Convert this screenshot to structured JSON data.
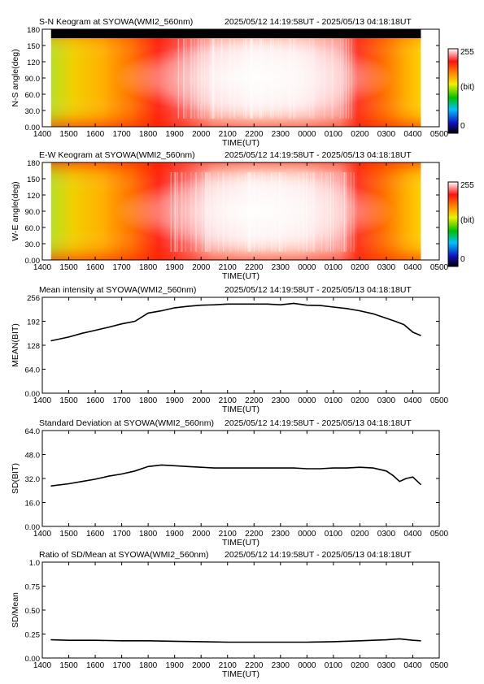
{
  "colors": {
    "line": "#000000",
    "frame": "#000000",
    "background": "#ffffff"
  },
  "x_ticks": [
    "1400",
    "1500",
    "1600",
    "1700",
    "1800",
    "1900",
    "2000",
    "2100",
    "2200",
    "2300",
    "0000",
    "0100",
    "0200",
    "0300",
    "0400",
    "0500"
  ],
  "chart_data": [
    {
      "type": "heatmap",
      "title": "S-N Keogram at SYOWA(WMI2_560nm)",
      "subtitle": "2025/05/12 14:19:58UT - 2025/05/13 04:18:18UT",
      "xlabel": "TIME(UT)",
      "ylabel": "N-S angle(deg)",
      "xlim": [
        "1400",
        "0500"
      ],
      "ylim": [
        0,
        180
      ],
      "y_ticks": [
        "0.00",
        "30.0",
        "60.0",
        "90.0",
        "120",
        "150",
        "180"
      ],
      "colorbar": {
        "ticks": [
          "0",
          "(bit)",
          "255"
        ],
        "range": [
          0,
          255
        ]
      },
      "data_extent": [
        "14:19:58",
        "04:18:18"
      ]
    },
    {
      "type": "heatmap",
      "title": "E-W Keogram at SYOWA(WMI2_560nm)",
      "subtitle": "2025/05/12 14:19:58UT - 2025/05/13 04:18:18UT",
      "xlabel": "TIME(UT)",
      "ylabel": "W-E angle(deg)",
      "xlim": [
        "1400",
        "0500"
      ],
      "ylim": [
        0,
        180
      ],
      "y_ticks": [
        "0.00",
        "30.0",
        "60.0",
        "90.0",
        "120",
        "150",
        "180"
      ],
      "colorbar": {
        "ticks": [
          "0",
          "(bit)",
          "255"
        ],
        "range": [
          0,
          255
        ]
      },
      "data_extent": [
        "14:19:58",
        "04:18:18"
      ]
    },
    {
      "type": "line",
      "title": "Mean intensity at SYOWA(WMI2_560nm)",
      "subtitle": "2025/05/12 14:19:58UT - 2025/05/13 04:18:18UT",
      "xlabel": "TIME(UT)",
      "ylabel": "MEAN(BIT)",
      "xlim": [
        "1400",
        "0500"
      ],
      "ylim": [
        0,
        256
      ],
      "y_ticks": [
        "0.00",
        "64.0",
        "128",
        "192",
        "256"
      ],
      "series": [
        {
          "x": [
            "14:20",
            "15:00",
            "15:30",
            "16:00",
            "16:30",
            "17:00",
            "17:30",
            "18:00",
            "18:30",
            "19:00",
            "19:30",
            "20:00",
            "20:30",
            "21:00",
            "21:30",
            "22:00",
            "22:30",
            "23:00",
            "23:30",
            "00:00",
            "00:30",
            "01:00",
            "01:30",
            "02:00",
            "02:30",
            "03:00",
            "03:20",
            "03:40",
            "04:00",
            "04:18"
          ],
          "values": [
            140,
            150,
            160,
            168,
            176,
            185,
            192,
            214,
            220,
            228,
            232,
            235,
            236,
            238,
            238,
            238,
            238,
            236,
            240,
            235,
            234,
            230,
            226,
            220,
            212,
            200,
            192,
            183,
            163,
            154
          ]
        }
      ]
    },
    {
      "type": "line",
      "title": "Standard Deviation at SYOWA(WMI2_560nm)",
      "subtitle": "2025/05/12 14:19:58UT - 2025/05/13 04:18:18UT",
      "xlabel": "TIME(UT)",
      "ylabel": "SD(BIT)",
      "xlim": [
        "1400",
        "0500"
      ],
      "ylim": [
        0,
        64
      ],
      "y_ticks": [
        "0.00",
        "16.0",
        "32.0",
        "48.0",
        "64.0"
      ],
      "series": [
        {
          "x": [
            "14:20",
            "15:00",
            "15:30",
            "16:00",
            "16:30",
            "17:00",
            "17:30",
            "18:00",
            "18:30",
            "19:00",
            "19:30",
            "20:00",
            "20:30",
            "21:00",
            "21:30",
            "22:00",
            "22:30",
            "23:00",
            "23:30",
            "00:00",
            "00:30",
            "01:00",
            "01:30",
            "02:00",
            "02:30",
            "03:00",
            "03:15",
            "03:30",
            "03:45",
            "04:00",
            "04:18"
          ],
          "values": [
            27,
            28.5,
            30,
            31.5,
            33.5,
            35,
            37,
            40,
            41,
            40.5,
            40,
            39.5,
            39,
            39,
            39,
            39,
            39,
            39,
            39,
            38.5,
            38.5,
            39,
            39,
            39.5,
            39,
            37,
            34,
            30,
            32,
            33,
            28
          ]
        }
      ]
    },
    {
      "type": "line",
      "title": "Ratio of SD/Mean at SYOWA(WMI2_560nm)",
      "subtitle": "2025/05/12 14:19:58UT - 2025/05/13 04:18:18UT",
      "xlabel": "TIME(UT)",
      "ylabel": "SD/Mean",
      "xlim": [
        "1400",
        "0500"
      ],
      "ylim": [
        0,
        1
      ],
      "y_ticks": [
        "0.00",
        "0.25",
        "0.50",
        "0.75",
        "1.0"
      ],
      "series": [
        {
          "x": [
            "14:20",
            "15:00",
            "16:00",
            "17:00",
            "18:00",
            "19:00",
            "20:00",
            "21:00",
            "22:00",
            "23:00",
            "00:00",
            "01:00",
            "02:00",
            "03:00",
            "03:30",
            "04:00",
            "04:18"
          ],
          "values": [
            0.19,
            0.185,
            0.185,
            0.18,
            0.18,
            0.175,
            0.17,
            0.165,
            0.165,
            0.165,
            0.165,
            0.17,
            0.18,
            0.19,
            0.2,
            0.185,
            0.18
          ]
        }
      ]
    }
  ]
}
